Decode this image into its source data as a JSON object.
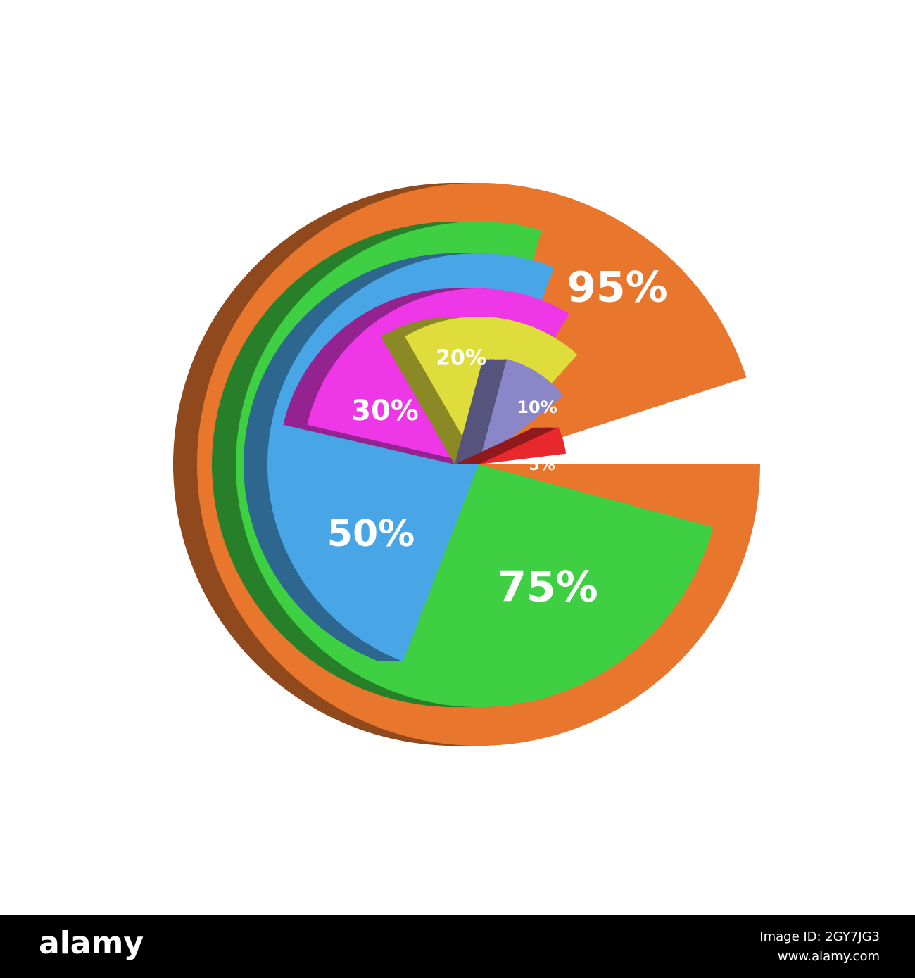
{
  "chart_data": {
    "type": "radial-pie",
    "values": [
      95,
      75,
      50,
      30,
      20,
      10,
      5
    ],
    "value_labels": [
      "95%",
      "75%",
      "50%",
      "30%",
      "20%",
      "10%",
      "5%"
    ],
    "colors": [
      "#e8762d",
      "#3fcf42",
      "#48a6e6",
      "#ee38e8",
      "#dedd3b",
      "#8b86c8",
      "#e8282c"
    ]
  },
  "footer": {
    "logo": "alamy",
    "image_id": "Image ID: 2GY7JG3",
    "url": "www.alamy.com"
  }
}
